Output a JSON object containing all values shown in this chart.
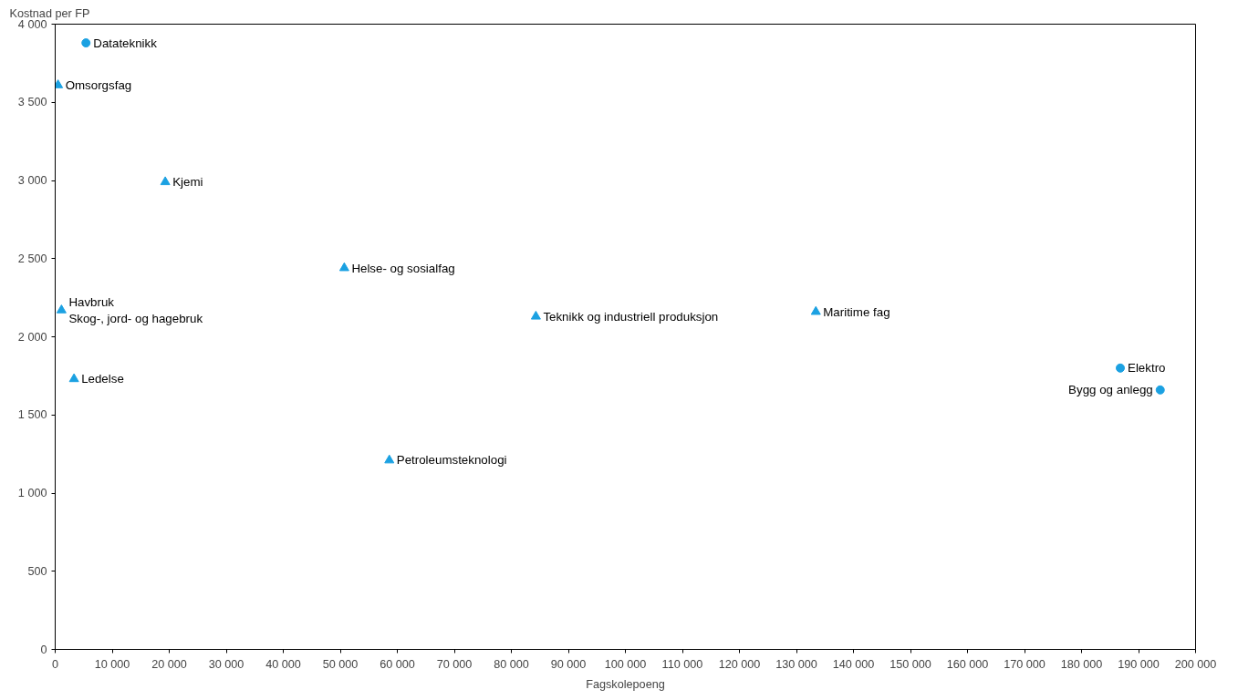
{
  "chart_data": {
    "type": "scatter",
    "xlabel": "Fagskolepoeng",
    "ylabel": "Kostnad per FP",
    "xlim": [
      0,
      200000
    ],
    "xticks": [
      0,
      {
        "value": 10000,
        "label": "10 000"
      },
      {
        "value": 20000,
        "label": "20 000"
      },
      {
        "value": 30000,
        "label": "30 000"
      },
      {
        "value": 40000,
        "label": "40 000"
      },
      {
        "value": 50000,
        "label": "50 000"
      },
      {
        "value": 60000,
        "label": "60 000"
      },
      {
        "value": 70000,
        "label": "70 000"
      },
      {
        "value": 80000,
        "label": "80 000"
      },
      {
        "value": 90000,
        "label": "90 000"
      },
      {
        "value": 100000,
        "label": "100 000"
      },
      {
        "value": 110000,
        "label": "110 000"
      },
      {
        "value": 120000,
        "label": "120 000"
      },
      {
        "value": 130000,
        "label": "130 000"
      },
      {
        "value": 140000,
        "label": "140 000"
      },
      {
        "value": 150000,
        "label": "150 000"
      },
      {
        "value": 160000,
        "label": "160 000"
      },
      {
        "value": 170000,
        "label": "170 000"
      },
      {
        "value": 180000,
        "label": "180 000"
      },
      {
        "value": 190000,
        "label": "190 000"
      },
      {
        "value": 200000,
        "label": "200 000"
      }
    ],
    "ylim": [
      0,
      4000
    ],
    "yticks": [
      0,
      500,
      {
        "value": 1000,
        "label": "1 000"
      },
      {
        "value": 1500,
        "label": "1 500"
      },
      {
        "value": 2000,
        "label": "2 000"
      },
      {
        "value": 2500,
        "label": "2 500"
      },
      {
        "value": 3000,
        "label": "3 000"
      },
      {
        "value": 3500,
        "label": "3 500"
      },
      {
        "value": 4000,
        "label": "4 000"
      }
    ],
    "grid": false,
    "series": [
      {
        "marker": "circle",
        "color": "#1ba1e2",
        "x": [
          5400,
          186800,
          193800
        ],
        "values": [
          3880,
          1800,
          1660
        ]
      },
      {
        "marker": "triangle",
        "color": "#1ba1e2",
        "x": [
          500,
          19300,
          50700,
          1100,
          3300,
          58600,
          84300,
          133400
        ],
        "values": [
          3610,
          2990,
          2440,
          2170,
          1730,
          1210,
          2130,
          2160
        ]
      }
    ],
    "annotations": [
      {
        "text": "Datateknikk",
        "x": 5400,
        "y": 3880
      },
      {
        "text": "Elektro",
        "x": 186800,
        "y": 1800
      },
      {
        "text": "Bygg og anlegg",
        "x": 193800,
        "y": 1660
      },
      {
        "text": "Omsorgsfag",
        "x": 500,
        "y": 3610
      },
      {
        "text": "Kjemi",
        "x": 19300,
        "y": 2990
      },
      {
        "text": "Helse- og sosialfag",
        "x": 50700,
        "y": 2440
      },
      {
        "text": "Havbruk",
        "x": 1100,
        "y": 2170
      },
      {
        "text": "Skog-, jord- og hagebruk",
        "x": 1100,
        "y": 2170
      },
      {
        "text": "Ledelse",
        "x": 3300,
        "y": 1730
      },
      {
        "text": "Petroleumsteknologi",
        "x": 58600,
        "y": 1210
      },
      {
        "text": "Teknikk og industriell produksjon",
        "x": 84300,
        "y": 2130
      },
      {
        "text": "Maritime fag",
        "x": 133400,
        "y": 2160
      }
    ]
  }
}
